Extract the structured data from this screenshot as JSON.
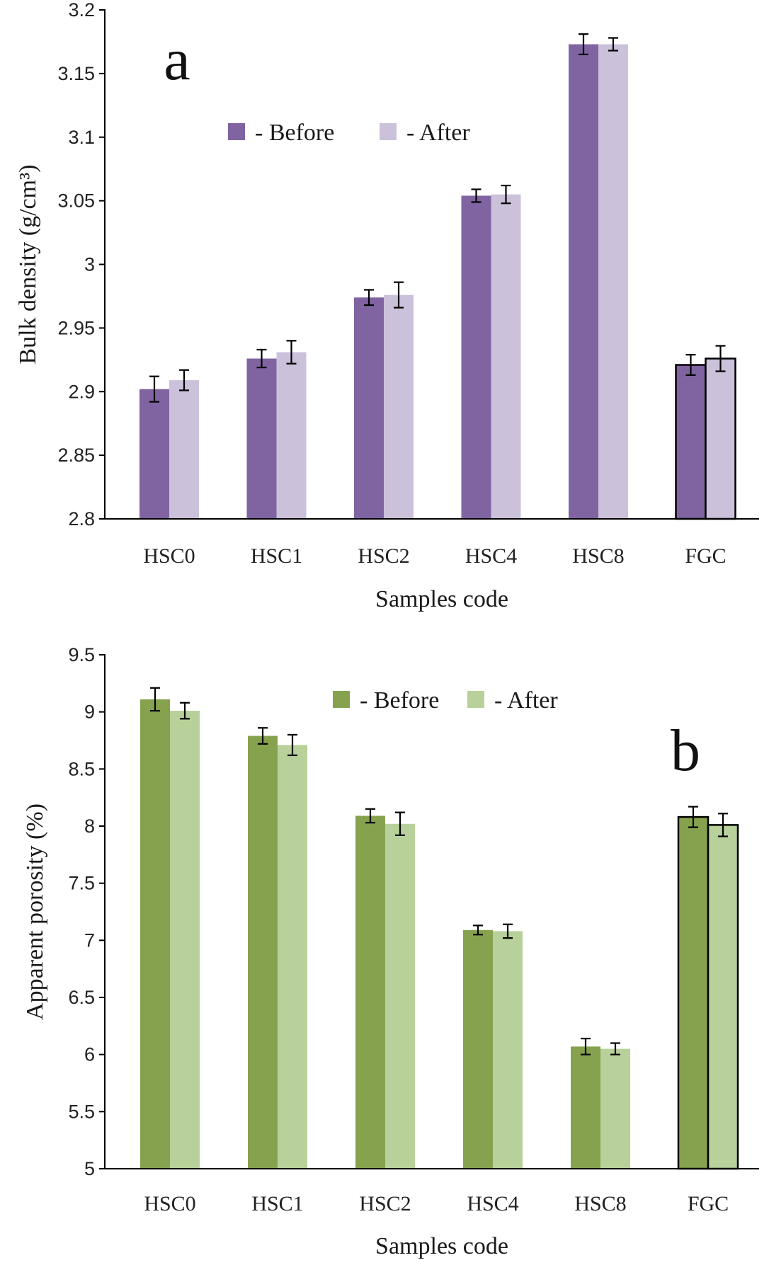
{
  "chart_data": [
    {
      "type": "bar",
      "panel_label": "a",
      "categories": [
        "HSC0",
        "HSC1",
        "HSC2",
        "HSC4",
        "HSC8",
        "FGC"
      ],
      "series": [
        {
          "name": "- Before",
          "values": [
            2.902,
            2.926,
            2.974,
            3.054,
            3.173,
            2.921
          ],
          "errors": [
            0.01,
            0.007,
            0.006,
            0.005,
            0.008,
            0.008
          ],
          "color": "#8064a2"
        },
        {
          "name": "- After",
          "values": [
            2.909,
            2.931,
            2.976,
            3.055,
            3.173,
            2.926
          ],
          "errors": [
            0.008,
            0.009,
            0.01,
            0.007,
            0.005,
            0.01
          ],
          "color": "#ccc1da"
        }
      ],
      "outlined_category": "FGC",
      "title": "",
      "xlabel": "Samples code",
      "ylabel": "Bulk density (g/cm³)",
      "ylim": [
        2.8,
        3.2
      ],
      "yticks": [
        "2.8",
        "2.85",
        "2.9",
        "2.95",
        "3",
        "3.05",
        "3.1",
        "3.15",
        "3.2"
      ],
      "legend_position": "top-center",
      "grid": false
    },
    {
      "type": "bar",
      "panel_label": "b",
      "categories": [
        "HSC0",
        "HSC1",
        "HSC2",
        "HSC4",
        "HSC8",
        "FGC"
      ],
      "series": [
        {
          "name": "- Before",
          "values": [
            9.11,
            8.79,
            8.09,
            7.09,
            6.07,
            8.08
          ],
          "errors": [
            0.1,
            0.07,
            0.06,
            0.04,
            0.07,
            0.09
          ],
          "color": "#86a24f"
        },
        {
          "name": "- After",
          "values": [
            9.01,
            8.71,
            8.02,
            7.08,
            6.05,
            8.01
          ],
          "errors": [
            0.07,
            0.09,
            0.1,
            0.06,
            0.05,
            0.1
          ],
          "color": "#b8d09a"
        }
      ],
      "outlined_category": "FGC",
      "title": "",
      "xlabel": "Samples code",
      "ylabel": "Apparent porosity (%)",
      "ylim": [
        5,
        9.5
      ],
      "yticks": [
        "5",
        "5.5",
        "6",
        "6.5",
        "7",
        "7.5",
        "8",
        "8.5",
        "9",
        "9.5"
      ],
      "legend_position": "top-center",
      "grid": false
    }
  ]
}
